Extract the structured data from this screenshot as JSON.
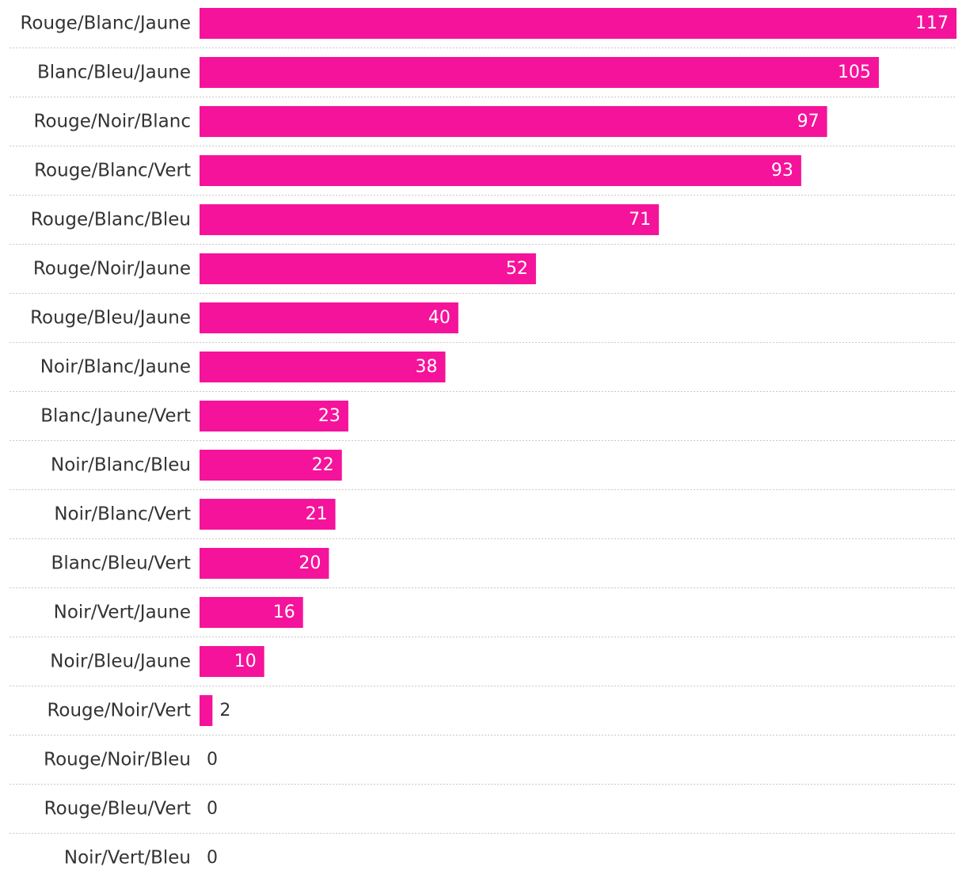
{
  "chart_data": {
    "type": "bar",
    "orientation": "horizontal",
    "categories": [
      "Rouge/Blanc/Jaune",
      "Blanc/Bleu/Jaune",
      "Rouge/Noir/Blanc",
      "Rouge/Blanc/Vert",
      "Rouge/Blanc/Bleu",
      "Rouge/Noir/Jaune",
      "Rouge/Bleu/Jaune",
      "Noir/Blanc/Jaune",
      "Blanc/Jaune/Vert",
      "Noir/Blanc/Bleu",
      "Noir/Blanc/Vert",
      "Blanc/Bleu/Vert",
      "Noir/Vert/Jaune",
      "Noir/Bleu/Jaune",
      "Rouge/Noir/Vert",
      "Rouge/Noir/Bleu",
      "Rouge/Bleu/Vert",
      "Noir/Vert/Bleu"
    ],
    "values": [
      117,
      105,
      97,
      93,
      71,
      52,
      40,
      38,
      23,
      22,
      21,
      20,
      16,
      10,
      2,
      0,
      0,
      0
    ],
    "title": "",
    "xlabel": "",
    "ylabel": "",
    "xlim": [
      0,
      117
    ],
    "grid": false,
    "data_labels": true,
    "bar_color": "#f5139b"
  }
}
